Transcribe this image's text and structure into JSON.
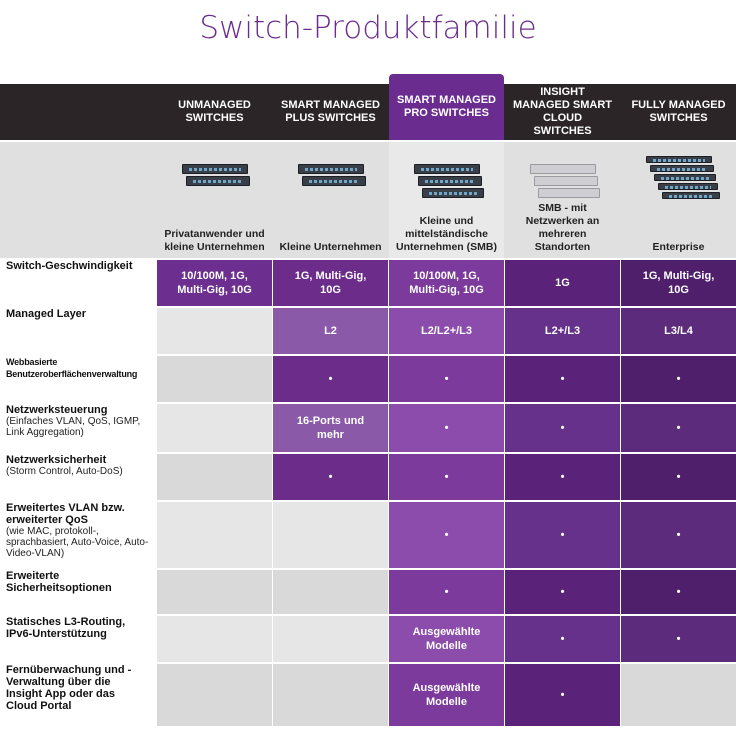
{
  "title": "Switch-Produktfamilie",
  "columns": [
    {
      "header": "UNMANAGED SWITCHES",
      "subtitle": "Privatanwender und kleine Unternehmen"
    },
    {
      "header": "SMART MANAGED PLUS SWITCHES",
      "subtitle": "Kleine Unternehmen"
    },
    {
      "header": "SMART MANAGED PRO SWITCHES",
      "subtitle": "Kleine und mittelständische Unternehmen (SMB)"
    },
    {
      "header": "INSIGHT MANAGED SMART CLOUD SWITCHES",
      "subtitle": "SMB - mit Netzwerken an mehreren Standorten"
    },
    {
      "header": "FULLY MANAGED SWITCHES",
      "subtitle": "Enterprise"
    }
  ],
  "rows": [
    {
      "label": "Switch-Geschwindigkeit",
      "cells": [
        "10/100M, 1G, Multi-Gig, 10G",
        "1G, Multi-Gig, 10G",
        "10/100M, 1G, Multi-Gig, 10G",
        "1G",
        "1G, Multi-Gig, 10G"
      ]
    },
    {
      "label": "Managed Layer",
      "cells": [
        null,
        "L2",
        "L2/L2+/L3",
        "L2+/L3",
        "L3/L4"
      ]
    },
    {
      "label": "Webbasierte Benutzeroberflächenverwaltung",
      "cells": [
        null,
        "•",
        "•",
        "•",
        "•"
      ]
    },
    {
      "label": "Netzwerksteuerung",
      "sublabel": "(Einfaches VLAN, QoS, IGMP, Link Aggregation)",
      "cells": [
        null,
        "16-Ports und mehr",
        "•",
        "•",
        "•"
      ]
    },
    {
      "label": "Netzwerksicherheit",
      "sublabel": "(Storm Control, Auto-DoS)",
      "cells": [
        null,
        "•",
        "•",
        "•",
        "•"
      ]
    },
    {
      "label": "Erweitertes VLAN bzw. erweiterter QoS",
      "sublabel": "(wie MAC, protokoll-, sprachbasiert, Auto-Voice, Auto-Video-VLAN)",
      "cells": [
        null,
        null,
        "•",
        "•",
        "•"
      ]
    },
    {
      "label": "Erweiterte Sicherheitsoptionen",
      "cells": [
        null,
        null,
        "•",
        "•",
        "•"
      ]
    },
    {
      "label": "Statisches L3-Routing, IPv6-Unterstützung",
      "cells": [
        null,
        null,
        "Ausgewählte Modelle",
        "•",
        "•"
      ]
    },
    {
      "label": "Fernüberwachung und -Verwaltung über die Insight App oder das Cloud Portal",
      "cells": [
        null,
        null,
        "Ausgewählte Modelle",
        "•",
        null
      ]
    }
  ]
}
